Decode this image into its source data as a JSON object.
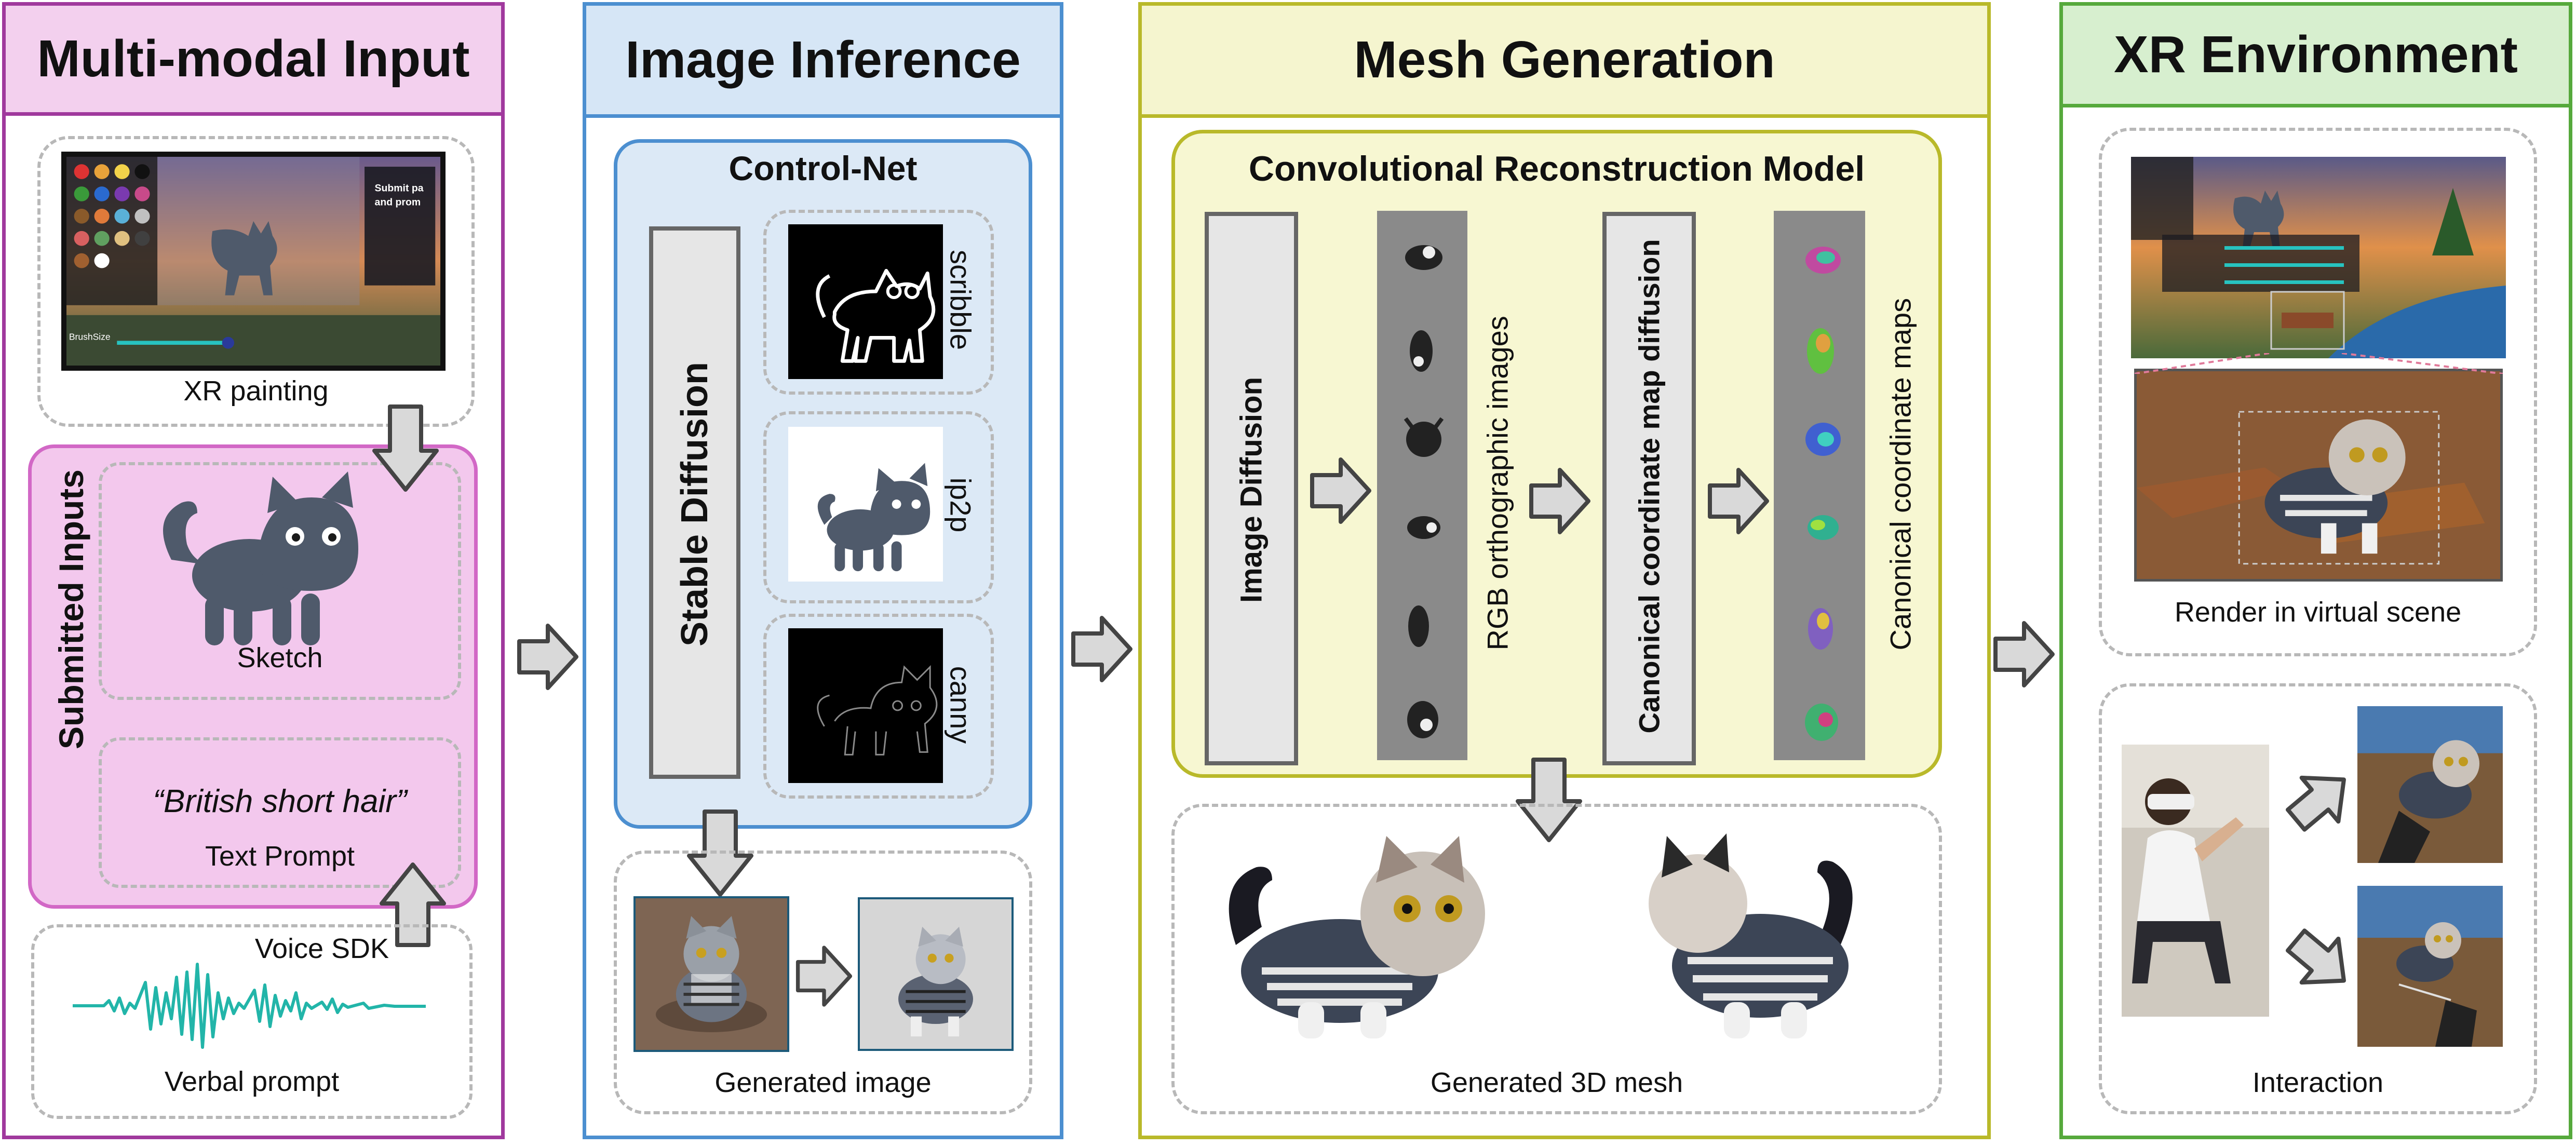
{
  "panels": {
    "multimodal": {
      "title": "Multi-modal Input",
      "xr_painting_label": "XR painting",
      "submitted_inputs_label": "Submitted Inputs",
      "sketch_label": "Sketch",
      "text_prompt_quote": "“British short hair”",
      "text_prompt_label": "Text Prompt",
      "voice_sdk_label": "Voice SDK",
      "verbal_prompt_label": "Verbal prompt",
      "painting_ui_text_1": "Submit pa",
      "painting_ui_text_2": "and prom",
      "brush_size_text": "BrushSize"
    },
    "image_inference": {
      "title": "Image Inference",
      "controlnet_label": "Control-Net",
      "stable_diffusion_label": "Stable Diffusion",
      "scribble_label": "scribble",
      "ip2p_label": "ip2p",
      "canny_label": "canny",
      "generated_image_label": "Generated image"
    },
    "mesh_generation": {
      "title": "Mesh Generation",
      "crm_label": "Convolutional Reconstruction Model",
      "image_diffusion_label": "Image Diffusion",
      "rgb_label": "RGB orthographic images",
      "ccm_diffusion_label": "Canonical coordinate map diffusion",
      "ccm_label": "Canonical coordinate maps",
      "generated_mesh_label": "Generated 3D mesh"
    },
    "xr_environment": {
      "title": "XR Environment",
      "render_label": "Render in virtual scene",
      "interaction_label": "Interaction"
    }
  },
  "colors": {
    "multimodal_border": "#a0399d",
    "multimodal_header": "#f3d0ee",
    "submitted_fill": "#f3c8ed",
    "image_border": "#4c8fd0",
    "image_header": "#d6e6f6",
    "controlnet_fill": "#dce9f6",
    "mesh_border": "#b9b92a",
    "mesh_header": "#f5f5cf",
    "crm_fill": "#f7f7d2",
    "xr_border": "#56a93c",
    "xr_header": "#d7efcf",
    "cat_body": "#4f5a6b",
    "waveform": "#22b5a9"
  }
}
